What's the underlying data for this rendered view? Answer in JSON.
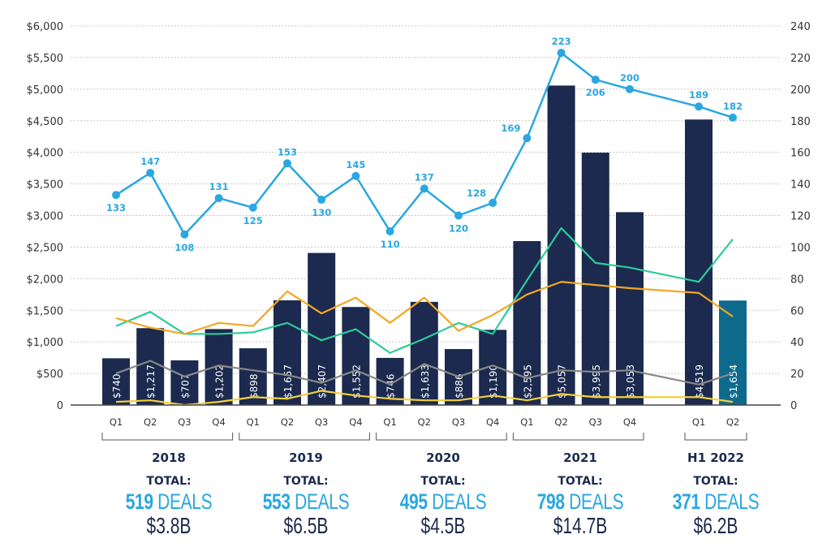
{
  "chart_data": {
    "type": "bar",
    "title": "",
    "xlabel": "",
    "ylabel": "",
    "y2label": "",
    "ylim": [
      0,
      6000
    ],
    "y2lim": [
      0,
      240
    ],
    "grid": true,
    "left_ticks": [
      "0",
      "$500",
      "$1,000",
      "$1,500",
      "$2,000",
      "$2,500",
      "$3,000",
      "$3,500",
      "$4,000",
      "$4,500",
      "$5,000",
      "$5,500",
      "$6,000"
    ],
    "left_tick_values": [
      0,
      500,
      1000,
      1500,
      2000,
      2500,
      3000,
      3500,
      4000,
      4500,
      5000,
      5500,
      6000
    ],
    "right_ticks": [
      "0",
      "20",
      "40",
      "60",
      "80",
      "100",
      "120",
      "140",
      "160",
      "180",
      "200",
      "220",
      "240"
    ],
    "right_tick_values": [
      0,
      20,
      40,
      60,
      80,
      100,
      120,
      140,
      160,
      180,
      200,
      220,
      240
    ],
    "categories": [
      "Q1",
      "Q2",
      "Q3",
      "Q4",
      "Q1",
      "Q2",
      "Q3",
      "Q4",
      "Q1",
      "Q2",
      "Q3",
      "Q4",
      "Q1",
      "Q2",
      "Q3",
      "Q4",
      "Q1",
      "Q2"
    ],
    "groups": [
      {
        "label": "2018",
        "start": 0,
        "end": 3
      },
      {
        "label": "2019",
        "start": 4,
        "end": 7
      },
      {
        "label": "2020",
        "start": 8,
        "end": 11
      },
      {
        "label": "2021",
        "start": 12,
        "end": 15
      },
      {
        "label": "H1 2022",
        "start": 16,
        "end": 17
      }
    ],
    "series": [
      {
        "name": "Deal value ($M)",
        "type": "bar",
        "axis": "left",
        "color": "#1b2a4e",
        "highlight_color": "#0e6a8c",
        "highlight_index": 17,
        "values": [
          740,
          1217,
          707,
          1202,
          898,
          1657,
          2407,
          1552,
          746,
          1633,
          886,
          1190,
          2595,
          5057,
          3995,
          3053,
          4519,
          1654
        ],
        "labels": [
          "$740",
          "$1,217",
          "$707",
          "$1,202",
          "$898",
          "$1,657",
          "$2,407",
          "$1,552",
          "$746",
          "$1,633",
          "$886",
          "$1,190",
          "$2,595",
          "$5,057",
          "$3,995",
          "$3,053",
          "$4,519",
          "$1,654"
        ]
      },
      {
        "name": "Deal count",
        "type": "line",
        "axis": "right",
        "color": "#2aa7e0",
        "markers": true,
        "values": [
          133,
          147,
          108,
          131,
          125,
          153,
          130,
          145,
          110,
          137,
          120,
          128,
          169,
          223,
          206,
          200,
          189,
          182
        ],
        "label_pos": [
          "below",
          "above",
          "below",
          "above",
          "below",
          "above",
          "below",
          "above",
          "below",
          "above",
          "below",
          "left",
          "left",
          "above",
          "below",
          "above",
          "above",
          "above"
        ]
      },
      {
        "name": "Series (green)",
        "type": "line",
        "axis": "right",
        "color": "#2ecc9a",
        "values": [
          50,
          59,
          45,
          45,
          46,
          52,
          41,
          48,
          33,
          42,
          52,
          45,
          79,
          112,
          90,
          87,
          78,
          105
        ]
      },
      {
        "name": "Series (orange)",
        "type": "line",
        "axis": "right",
        "color": "#f5a623",
        "values": [
          55,
          49,
          45,
          52,
          50,
          72,
          58,
          68,
          52,
          68,
          47,
          57,
          70,
          78,
          76,
          74,
          71,
          56
        ]
      },
      {
        "name": "Series (gray)",
        "type": "line",
        "axis": "right",
        "color": "#888888",
        "values": [
          20,
          28,
          18,
          25,
          22,
          19,
          14,
          22,
          13,
          26,
          18,
          25,
          17,
          22,
          21,
          22,
          13,
          20
        ]
      },
      {
        "name": "Series (yellow)",
        "type": "line",
        "axis": "right",
        "color": "#f4d03f",
        "values": [
          2,
          3,
          0,
          2,
          5,
          4,
          9,
          6,
          4,
          3,
          3,
          6,
          3,
          7,
          5,
          5,
          5,
          2
        ]
      }
    ],
    "legend": "none"
  },
  "summary": [
    {
      "year": "2018",
      "total_label": "TOTAL:",
      "deals_num": "519",
      "deals_word": "DEALS",
      "amount": "$3.8B"
    },
    {
      "year": "2019",
      "total_label": "TOTAL:",
      "deals_num": "553",
      "deals_word": "DEALS",
      "amount": "$6.5B"
    },
    {
      "year": "2020",
      "total_label": "TOTAL:",
      "deals_num": "495",
      "deals_word": "DEALS",
      "amount": "$4.5B"
    },
    {
      "year": "2021",
      "total_label": "TOTAL:",
      "deals_num": "798",
      "deals_word": "DEALS",
      "amount": "$14.7B"
    },
    {
      "year": "H1 2022",
      "total_label": "TOTAL:",
      "deals_num": "371",
      "deals_word": "DEALS",
      "amount": "$6.2B"
    }
  ]
}
